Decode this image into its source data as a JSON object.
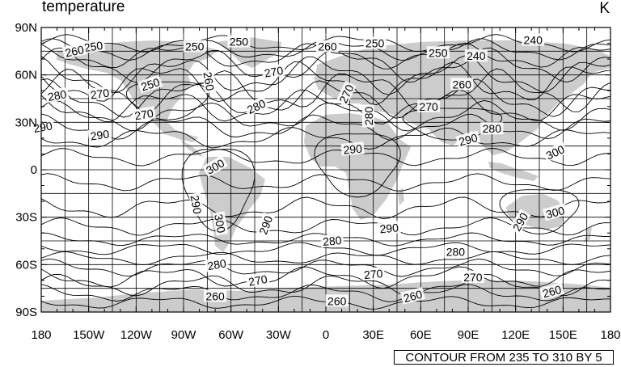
{
  "title": "temperature",
  "units": "K",
  "info_box": "CONTOUR FROM 235 TO 310 BY 5",
  "colors": {
    "land": "#cccccc",
    "contour": "#000000",
    "background": "#ffffff"
  },
  "axes": {
    "lon_ticks": [
      "180",
      "150W",
      "120W",
      "90W",
      "60W",
      "30W",
      "0",
      "30E",
      "60E",
      "90E",
      "120E",
      "150E",
      "180"
    ],
    "lat_ticks": [
      "90N",
      "60N",
      "30N",
      "0",
      "30S",
      "60S",
      "90S"
    ]
  },
  "contour_labels": [
    {
      "text": "250",
      "lon": -147,
      "lat": 78,
      "rot": -8
    },
    {
      "text": "260",
      "lon": -159,
      "lat": 75,
      "rot": -12
    },
    {
      "text": "250",
      "lon": -83,
      "lat": 78,
      "rot": 0
    },
    {
      "text": "250",
      "lon": -55,
      "lat": 81,
      "rot": 0
    },
    {
      "text": "260",
      "lon": 1,
      "lat": 78,
      "rot": 0
    },
    {
      "text": "250",
      "lon": 31,
      "lat": 80,
      "rot": 0
    },
    {
      "text": "250",
      "lon": 71,
      "lat": 74,
      "rot": 0
    },
    {
      "text": "240",
      "lon": 131,
      "lat": 82,
      "rot": 0
    },
    {
      "text": "240",
      "lon": 95,
      "lat": 72,
      "rot": 0
    },
    {
      "text": "270",
      "lon": -33,
      "lat": 62,
      "rot": -10
    },
    {
      "text": "260",
      "lon": -74,
      "lat": 56,
      "rot": 80
    },
    {
      "text": "250",
      "lon": -111,
      "lat": 54,
      "rot": -18
    },
    {
      "text": "270",
      "lon": -143,
      "lat": 48,
      "rot": -8
    },
    {
      "text": "280",
      "lon": -170,
      "lat": 47,
      "rot": -10
    },
    {
      "text": "260",
      "lon": 86,
      "lat": 54,
      "rot": 0
    },
    {
      "text": "270",
      "lon": 13,
      "lat": 48,
      "rot": -65
    },
    {
      "text": "280",
      "lon": -44,
      "lat": 40,
      "rot": -25
    },
    {
      "text": "270",
      "lon": -115,
      "lat": 35,
      "rot": -10
    },
    {
      "text": "270",
      "lon": 65,
      "lat": 40,
      "rot": 0
    },
    {
      "text": "280",
      "lon": 27,
      "lat": 34,
      "rot": -90
    },
    {
      "text": "290",
      "lon": -179,
      "lat": 27,
      "rot": -10
    },
    {
      "text": "290",
      "lon": -143,
      "lat": 22,
      "rot": -8
    },
    {
      "text": "280",
      "lon": 105,
      "lat": 26,
      "rot": 0
    },
    {
      "text": "290",
      "lon": 90,
      "lat": 19,
      "rot": -15
    },
    {
      "text": "290",
      "lon": 17,
      "lat": 13,
      "rot": -5
    },
    {
      "text": "300",
      "lon": 145,
      "lat": 11,
      "rot": -25
    },
    {
      "text": "300",
      "lon": -70,
      "lat": 2,
      "rot": -30
    },
    {
      "text": "290",
      "lon": -82,
      "lat": -22,
      "rot": 80
    },
    {
      "text": "300",
      "lon": -67,
      "lat": -34,
      "rot": 80
    },
    {
      "text": "290",
      "lon": -38,
      "lat": -35,
      "rot": -70
    },
    {
      "text": "300",
      "lon": 145,
      "lat": -27,
      "rot": -15
    },
    {
      "text": "290",
      "lon": 123,
      "lat": -33,
      "rot": -60
    },
    {
      "text": "290",
      "lon": 40,
      "lat": -37,
      "rot": -5
    },
    {
      "text": "280",
      "lon": 4,
      "lat": -45,
      "rot": -5
    },
    {
      "text": "280",
      "lon": 82,
      "lat": -52,
      "rot": 0
    },
    {
      "text": "280",
      "lon": -69,
      "lat": -60,
      "rot": -10
    },
    {
      "text": "270",
      "lon": -43,
      "lat": -70,
      "rot": -10
    },
    {
      "text": "270",
      "lon": 30,
      "lat": -66,
      "rot": -5
    },
    {
      "text": "270",
      "lon": 93,
      "lat": -68,
      "rot": 0
    },
    {
      "text": "260",
      "lon": -70,
      "lat": -80,
      "rot": 0
    },
    {
      "text": "260",
      "lon": 7,
      "lat": -83,
      "rot": 0
    },
    {
      "text": "260",
      "lon": 55,
      "lat": -80,
      "rot": -15
    },
    {
      "text": "260",
      "lon": 143,
      "lat": -77,
      "rot": -15
    }
  ]
}
